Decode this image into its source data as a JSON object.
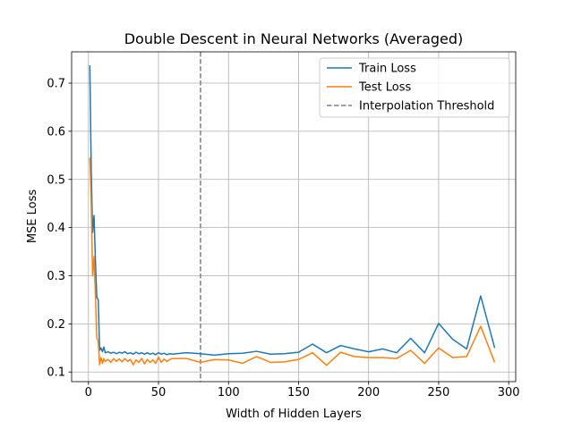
{
  "chart_data": {
    "type": "line",
    "title": "Double Descent in Neural Networks (Averaged)",
    "xlabel": "Width of Hidden Layers",
    "ylabel": "MSE Loss",
    "xlim": [
      -12,
      305
    ],
    "ylim": [
      0.08,
      0.765
    ],
    "xticks": [
      0,
      50,
      100,
      150,
      200,
      250,
      300
    ],
    "yticks": [
      0.1,
      0.2,
      0.3,
      0.4,
      0.5,
      0.6,
      0.7
    ],
    "grid": true,
    "legend_position": "top-right",
    "colors": {
      "train": "#1f77b4",
      "test": "#ff7f0e",
      "threshold": "#808080"
    },
    "series": [
      {
        "name": "Train Loss",
        "color": "#1f77b4",
        "x": [
          1,
          2,
          3,
          4,
          5,
          6,
          7,
          8,
          9,
          10,
          11,
          12,
          14,
          16,
          18,
          20,
          22,
          24,
          26,
          28,
          30,
          32,
          34,
          36,
          38,
          40,
          42,
          44,
          46,
          48,
          50,
          52,
          54,
          56,
          58,
          60,
          70,
          80,
          90,
          100,
          110,
          120,
          130,
          140,
          150,
          160,
          170,
          180,
          190,
          200,
          210,
          220,
          230,
          240,
          250,
          260,
          270,
          280,
          290
        ],
        "y": [
          0.737,
          0.52,
          0.39,
          0.425,
          0.33,
          0.255,
          0.25,
          0.145,
          0.15,
          0.142,
          0.152,
          0.14,
          0.142,
          0.139,
          0.141,
          0.138,
          0.141,
          0.139,
          0.142,
          0.138,
          0.14,
          0.137,
          0.141,
          0.138,
          0.14,
          0.137,
          0.14,
          0.137,
          0.139,
          0.136,
          0.14,
          0.137,
          0.139,
          0.136,
          0.138,
          0.137,
          0.14,
          0.138,
          0.135,
          0.138,
          0.139,
          0.143,
          0.137,
          0.138,
          0.141,
          0.158,
          0.14,
          0.155,
          0.148,
          0.142,
          0.148,
          0.14,
          0.17,
          0.14,
          0.201,
          0.168,
          0.148,
          0.258,
          0.15
        ]
      },
      {
        "name": "Test Loss",
        "color": "#ff7f0e",
        "x": [
          1,
          2,
          3,
          4,
          5,
          6,
          7,
          8,
          9,
          10,
          11,
          12,
          14,
          16,
          18,
          20,
          22,
          24,
          26,
          28,
          30,
          32,
          34,
          36,
          38,
          40,
          42,
          44,
          46,
          48,
          50,
          52,
          54,
          56,
          58,
          60,
          70,
          80,
          90,
          100,
          110,
          120,
          130,
          140,
          150,
          160,
          170,
          180,
          190,
          200,
          210,
          220,
          230,
          240,
          250,
          260,
          270,
          280,
          290
        ],
        "y": [
          0.545,
          0.45,
          0.3,
          0.34,
          0.26,
          0.17,
          0.165,
          0.115,
          0.13,
          0.118,
          0.128,
          0.122,
          0.126,
          0.12,
          0.128,
          0.122,
          0.127,
          0.121,
          0.128,
          0.122,
          0.126,
          0.115,
          0.125,
          0.12,
          0.128,
          0.117,
          0.126,
          0.12,
          0.125,
          0.118,
          0.131,
          0.12,
          0.127,
          0.122,
          0.126,
          0.128,
          0.128,
          0.12,
          0.126,
          0.125,
          0.118,
          0.132,
          0.12,
          0.121,
          0.126,
          0.14,
          0.114,
          0.141,
          0.132,
          0.13,
          0.13,
          0.128,
          0.145,
          0.118,
          0.15,
          0.13,
          0.132,
          0.195,
          0.12
        ]
      }
    ],
    "vlines": [
      {
        "name": "Interpolation Threshold",
        "x": 80,
        "color": "#808080",
        "style": "dashed"
      }
    ]
  }
}
